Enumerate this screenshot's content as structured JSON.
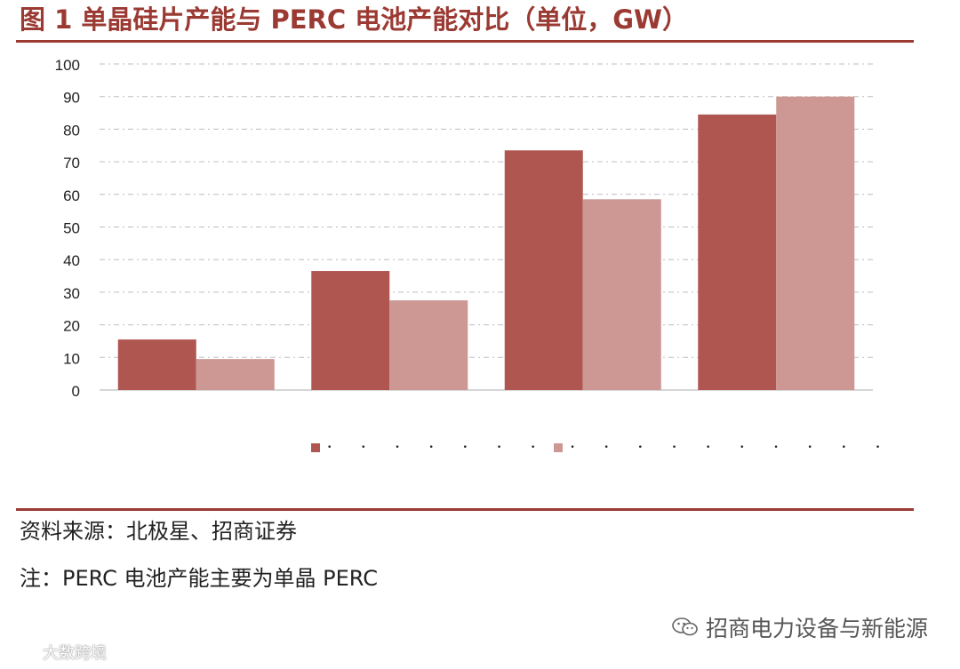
{
  "title": "图 1  单晶硅片产能与 PERC 电池产能对比（单位，GW）",
  "colors": {
    "accent": "#9b3a33",
    "series1": "#b05651",
    "series2": "#cd9794"
  },
  "legend": [
    {
      "label": "• • • • • • •"
    },
    {
      "label": "• • • • • • • • • •"
    }
  ],
  "chart_data": {
    "type": "bar",
    "categories": [
      "",
      "",
      "",
      ""
    ],
    "series": [
      {
        "name": "",
        "values": [
          15.5,
          36.5,
          73.5,
          84.5
        ]
      },
      {
        "name": "",
        "values": [
          9.5,
          27.5,
          58.5,
          90
        ]
      }
    ],
    "ylim": [
      0,
      100
    ],
    "yticks": [
      0,
      10,
      20,
      30,
      40,
      50,
      60,
      70,
      80,
      90,
      100
    ],
    "grid": true,
    "legend_position": "bottom"
  },
  "source": "资料来源：北极星、招商证券",
  "note": "注：PERC 电池产能主要为单晶 PERC",
  "watermark_right": "招商电力设备与新能源",
  "watermark_left": "大数跨境",
  "icons": {
    "wechat": "wechat-icon",
    "logo": "dashuju-logo-icon"
  }
}
